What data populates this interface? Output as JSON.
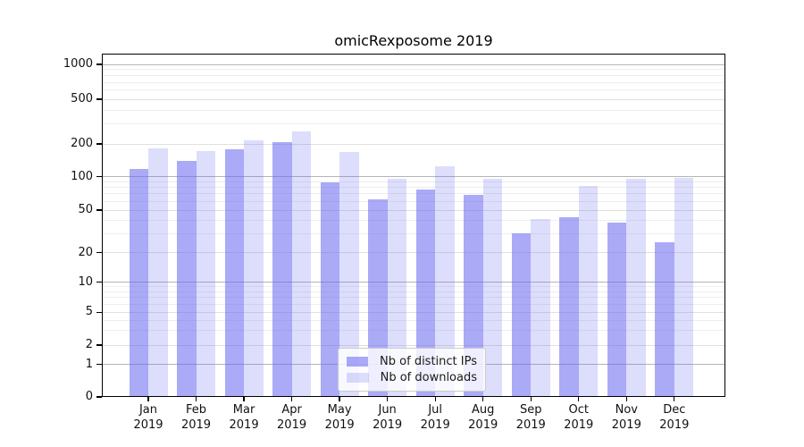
{
  "chart_data": {
    "type": "bar",
    "title": "omicRexposome 2019",
    "categories": [
      "Jan 2019",
      "Feb 2019",
      "Mar 2019",
      "Apr 2019",
      "May 2019",
      "Jun 2019",
      "Jul 2019",
      "Aug 2019",
      "Sep 2019",
      "Oct 2019",
      "Nov 2019",
      "Dec 2019"
    ],
    "series": [
      {
        "name": "Nb of distinct IPs",
        "fill": "rgba(100,100,240,0.55)",
        "apparent_color": "#aaaaf7",
        "values": [
          118,
          139,
          177,
          207,
          88,
          62,
          77,
          69,
          30,
          43,
          38,
          25
        ]
      },
      {
        "name": "Nb of downloads",
        "fill": "rgba(100,100,240,0.22)",
        "apparent_color": "#dcdcfb",
        "values": [
          183,
          172,
          216,
          258,
          168,
          95,
          124,
          95,
          41,
          82,
          96,
          98
        ]
      }
    ],
    "y_axis": {
      "ticks": [
        0,
        1,
        2,
        5,
        10,
        20,
        50,
        100,
        200,
        500,
        1000
      ],
      "scale": "log-like with 0 baseline",
      "ylim": [
        0,
        1000
      ]
    },
    "x_axis": {
      "label_lines": 2
    },
    "grid": "on",
    "legend_position": "bottom-center-inside",
    "colors": {
      "bar_base": "#6464f0",
      "major_gridline": "#b5b5b5",
      "mid_gridline": "#e0e0e0",
      "minor_gridline": "#ededed",
      "axis": "#000000"
    }
  }
}
